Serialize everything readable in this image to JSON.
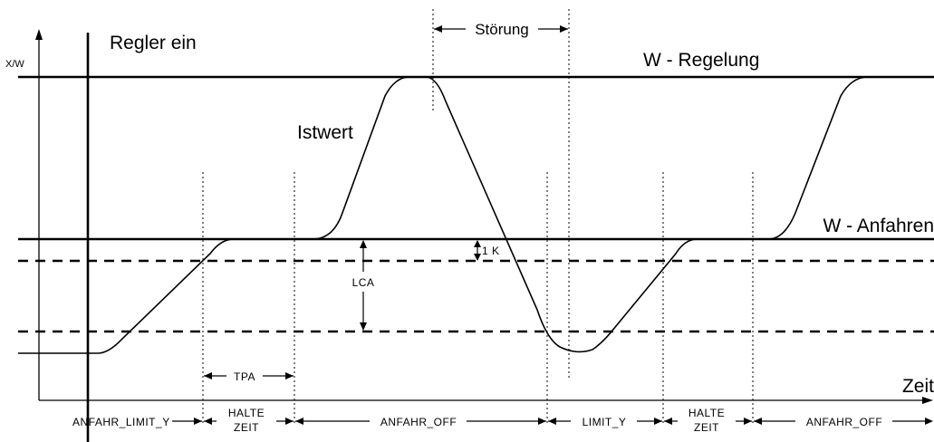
{
  "labels": {
    "y_axis": "X/W",
    "x_axis": "Zeit",
    "regler_ein": "Regler ein",
    "w_regelung": "W - Regelung",
    "w_anfahren": "W - Anfahren",
    "istwert": "Istwert",
    "stoerung": "Störung",
    "lca": "LCA",
    "one_k": "1 K",
    "tpa": "TPA"
  },
  "phases": [
    {
      "id": "anfahr-limit-y",
      "text": "ANFAHR_LIMIT_Y"
    },
    {
      "id": "halte-zeit-1",
      "line1": "HALTE",
      "line2": "ZEIT"
    },
    {
      "id": "anfahr-off-1",
      "text": "ANFAHR_OFF"
    },
    {
      "id": "limit-y",
      "text": "LIMIT_Y"
    },
    {
      "id": "halte-zeit-2",
      "line1": "HALTE",
      "line2": "ZEIT"
    },
    {
      "id": "anfahr-off-2",
      "text": "ANFAHR_OFF"
    }
  ]
}
